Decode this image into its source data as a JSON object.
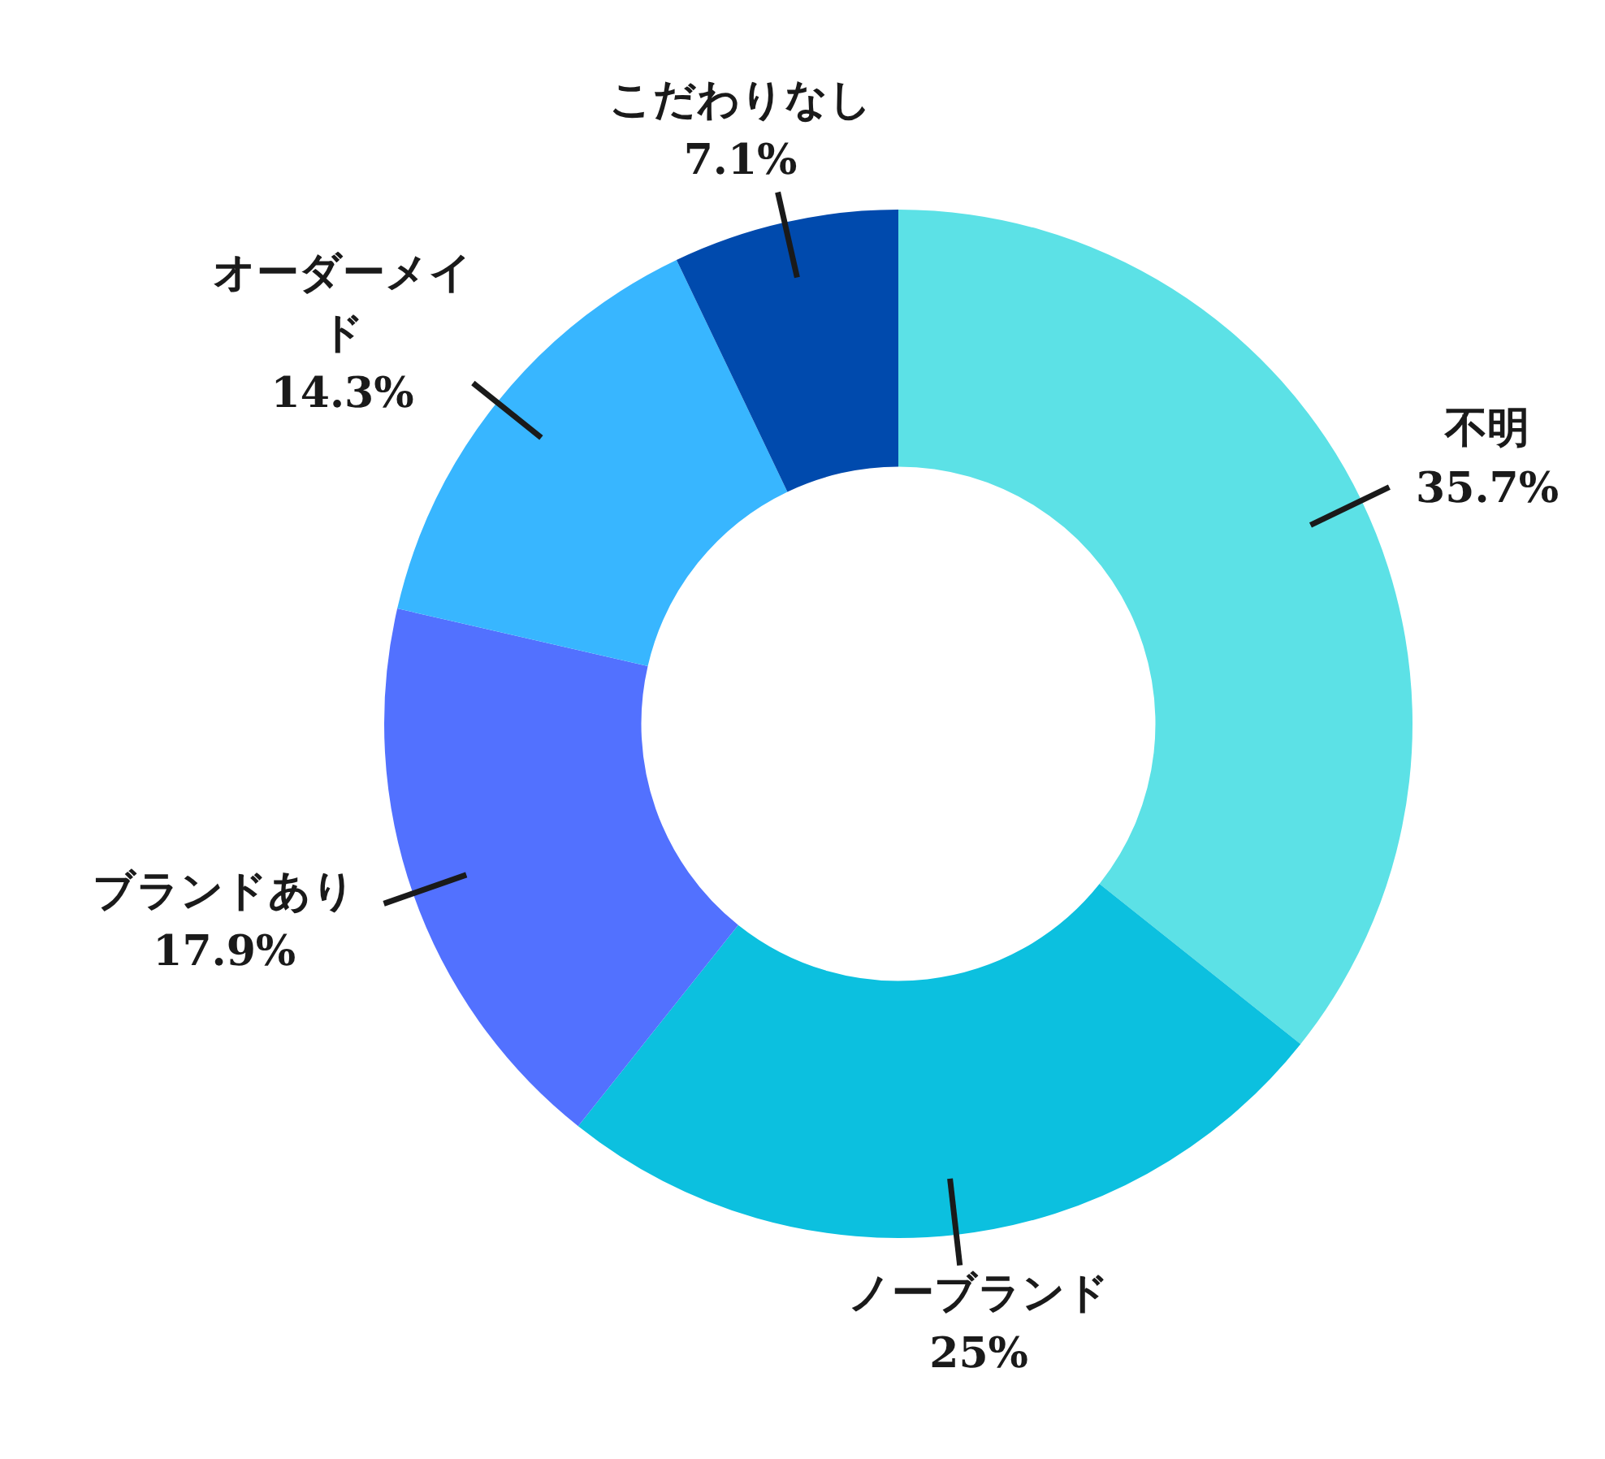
{
  "chart_data": {
    "type": "donut",
    "categories": [
      "不明",
      "ノーブランド",
      "ブランドあり",
      "オーダーメイド",
      "こだわりなし"
    ],
    "values": [
      35.7,
      25,
      17.9,
      14.3,
      7.1
    ],
    "value_labels": [
      "35.7%",
      "25%",
      "17.9%",
      "14.3%",
      "7.1%"
    ],
    "colors": [
      "#5ce1e6",
      "#0cc0df",
      "#5271ff",
      "#38b6ff",
      "#004aad"
    ],
    "legend": false
  }
}
